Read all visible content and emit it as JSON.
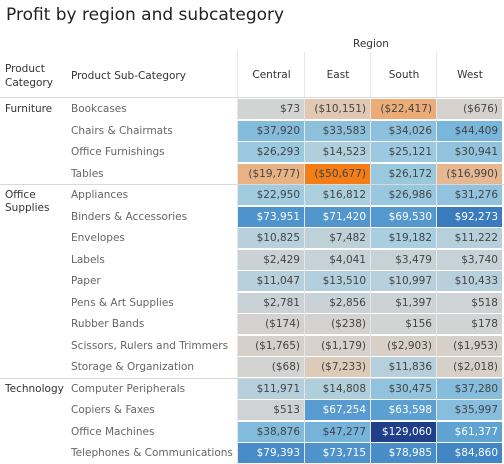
{
  "chart_data": {
    "type": "heatmap",
    "title": "Profit by region and subcategory",
    "column_group_label": "Region",
    "row_header_category": "Product Category",
    "row_header_subcategory": "Product Sub-Category",
    "regions": [
      "Central",
      "East",
      "South",
      "West"
    ],
    "color_scale": {
      "min": -50677,
      "max": 129060,
      "negative_color": "#f57d15",
      "positive_color": "#1f3f8a",
      "neutral_color": "#d3d3d3"
    },
    "categories": [
      {
        "name": "Furniture",
        "rows": [
          {
            "name": "Bookcases",
            "values": [
              73,
              -10151,
              -22417,
              -676
            ],
            "labels": [
              "$73",
              "($10,151)",
              "($22,417)",
              "($676)"
            ]
          },
          {
            "name": "Chairs & Chairmats",
            "values": [
              37920,
              33583,
              34026,
              44409
            ],
            "labels": [
              "$37,920",
              "$33,583",
              "$34,026",
              "$44,409"
            ]
          },
          {
            "name": "Office Furnishings",
            "values": [
              26293,
              14523,
              25121,
              30941
            ],
            "labels": [
              "$26,293",
              "$14,523",
              "$25,121",
              "$30,941"
            ]
          },
          {
            "name": "Tables",
            "values": [
              -19777,
              -50677,
              26172,
              -16990
            ],
            "labels": [
              "($19,777)",
              "($50,677)",
              "$26,172",
              "($16,990)"
            ]
          }
        ]
      },
      {
        "name": "Office Supplies",
        "rows": [
          {
            "name": "Appliances",
            "values": [
              22950,
              16812,
              26986,
              31276
            ],
            "labels": [
              "$22,950",
              "$16,812",
              "$26,986",
              "$31,276"
            ]
          },
          {
            "name": "Binders & Accessories",
            "values": [
              73951,
              71420,
              69530,
              92273
            ],
            "labels": [
              "$73,951",
              "$71,420",
              "$69,530",
              "$92,273"
            ]
          },
          {
            "name": "Envelopes",
            "values": [
              10825,
              7482,
              19182,
              11222
            ],
            "labels": [
              "$10,825",
              "$7,482",
              "$19,182",
              "$11,222"
            ]
          },
          {
            "name": "Labels",
            "values": [
              2429,
              4041,
              3479,
              3740
            ],
            "labels": [
              "$2,429",
              "$4,041",
              "$3,479",
              "$3,740"
            ]
          },
          {
            "name": "Paper",
            "values": [
              11047,
              13510,
              10997,
              10433
            ],
            "labels": [
              "$11,047",
              "$13,510",
              "$10,997",
              "$10,433"
            ]
          },
          {
            "name": "Pens & Art Supplies",
            "values": [
              2781,
              2856,
              1397,
              518
            ],
            "labels": [
              "$2,781",
              "$2,856",
              "$1,397",
              "$518"
            ]
          },
          {
            "name": "Rubber Bands",
            "values": [
              -174,
              -238,
              156,
              178
            ],
            "labels": [
              "($174)",
              "($238)",
              "$156",
              "$178"
            ]
          },
          {
            "name": "Scissors, Rulers and Trimmers",
            "values": [
              -1765,
              -1179,
              -2903,
              -1953
            ],
            "labels": [
              "($1,765)",
              "($1,179)",
              "($2,903)",
              "($1,953)"
            ]
          },
          {
            "name": "Storage & Organization",
            "values": [
              -68,
              -7233,
              11836,
              -2018
            ],
            "labels": [
              "($68)",
              "($7,233)",
              "$11,836",
              "($2,018)"
            ]
          }
        ]
      },
      {
        "name": "Technology",
        "rows": [
          {
            "name": "Computer Peripherals",
            "values": [
              11971,
              14808,
              30475,
              37280
            ],
            "labels": [
              "$11,971",
              "$14,808",
              "$30,475",
              "$37,280"
            ]
          },
          {
            "name": "Copiers & Faxes",
            "values": [
              513,
              67254,
              63598,
              35997
            ],
            "labels": [
              "$513",
              "$67,254",
              "$63,598",
              "$35,997"
            ]
          },
          {
            "name": "Office Machines",
            "values": [
              38876,
              47277,
              129060,
              61377
            ],
            "labels": [
              "$38,876",
              "$47,277",
              "$129,060",
              "$61,377"
            ]
          },
          {
            "name": "Telephones & Communications",
            "values": [
              79393,
              73715,
              78985,
              84860
            ],
            "labels": [
              "$79,393",
              "$73,715",
              "$78,985",
              "$84,860"
            ]
          }
        ]
      }
    ]
  }
}
